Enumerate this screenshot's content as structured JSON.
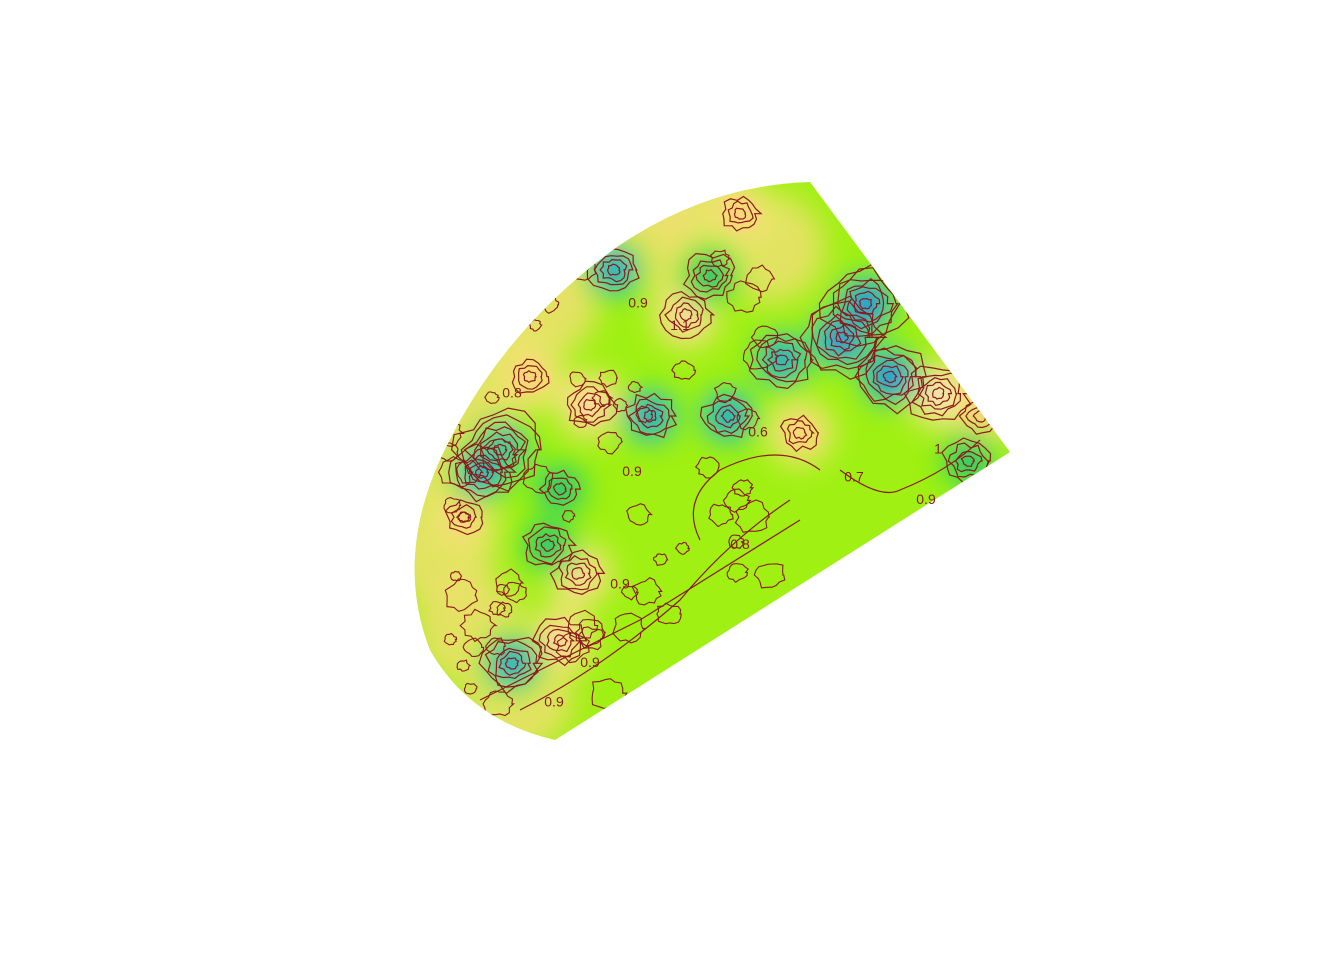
{
  "chart_data": {
    "type": "heatmap",
    "subtype": "filled-contour-with-contour-lines",
    "title": "",
    "xlabel": "",
    "ylabel": "",
    "axes_visible": false,
    "grid": false,
    "legend": "none",
    "colormap": {
      "name": "rainbow",
      "stops": [
        {
          "value": 0.3,
          "color": "#0000ff"
        },
        {
          "value": 0.5,
          "color": "#1e90ff"
        },
        {
          "value": 0.7,
          "color": "#00e000"
        },
        {
          "value": 0.8,
          "color": "#90f000"
        },
        {
          "value": 0.9,
          "color": "#e0f060"
        },
        {
          "value": 1.0,
          "color": "#ffd080"
        },
        {
          "value": 1.2,
          "color": "#ffe8d0"
        }
      ]
    },
    "contour_line_color": "#8b1a1a",
    "contour_levels": [
      0.3,
      0.4,
      0.5,
      0.6,
      0.7,
      0.8,
      0.9,
      1.0,
      1.1,
      1.2
    ],
    "labeled_contours": [
      {
        "label": "0.9",
        "u": 0.35,
        "v": 0.72
      },
      {
        "label": "0.9",
        "u": 0.3,
        "v": 0.86
      },
      {
        "label": "0.9",
        "u": 0.24,
        "v": 0.93
      },
      {
        "label": "0.8",
        "u": 0.55,
        "v": 0.65
      },
      {
        "label": "0.7",
        "u": 0.74,
        "v": 0.53
      },
      {
        "label": "0.9",
        "u": 0.86,
        "v": 0.57
      },
      {
        "label": "1",
        "u": 0.88,
        "v": 0.48
      },
      {
        "label": "0.6",
        "u": 0.58,
        "v": 0.45
      },
      {
        "label": "0.9",
        "u": 0.37,
        "v": 0.52
      },
      {
        "label": "0.9",
        "u": 0.38,
        "v": 0.22
      },
      {
        "label": "1.1",
        "u": 0.45,
        "v": 0.26
      },
      {
        "label": "0.8",
        "u": 0.17,
        "v": 0.38
      }
    ],
    "low_spots": [
      {
        "u": 0.72,
        "v": 0.28,
        "value": 0.3
      },
      {
        "u": 0.76,
        "v": 0.22,
        "value": 0.35
      },
      {
        "u": 0.8,
        "v": 0.35,
        "value": 0.4
      },
      {
        "u": 0.15,
        "v": 0.48,
        "value": 0.35
      },
      {
        "u": 0.12,
        "v": 0.52,
        "value": 0.45
      },
      {
        "u": 0.62,
        "v": 0.32,
        "value": 0.45
      },
      {
        "u": 0.53,
        "v": 0.42,
        "value": 0.5
      },
      {
        "u": 0.4,
        "v": 0.42,
        "value": 0.5
      },
      {
        "u": 0.5,
        "v": 0.17,
        "value": 0.55
      },
      {
        "u": 0.17,
        "v": 0.86,
        "value": 0.45
      },
      {
        "u": 0.23,
        "v": 0.65,
        "value": 0.55
      },
      {
        "u": 0.93,
        "v": 0.5,
        "value": 0.55
      },
      {
        "u": 0.34,
        "v": 0.16,
        "value": 0.5
      },
      {
        "u": 0.25,
        "v": 0.55,
        "value": 0.6
      }
    ],
    "high_spots": [
      {
        "u": 0.88,
        "v": 0.38,
        "value": 1.2
      },
      {
        "u": 0.28,
        "v": 0.7,
        "value": 1.1
      },
      {
        "u": 0.25,
        "v": 0.82,
        "value": 1.1
      },
      {
        "u": 0.3,
        "v": 0.4,
        "value": 1.1
      },
      {
        "u": 0.46,
        "v": 0.24,
        "value": 1.1
      },
      {
        "u": 0.55,
        "v": 0.06,
        "value": 1.05
      },
      {
        "u": 0.09,
        "v": 0.6,
        "value": 1.05
      },
      {
        "u": 0.2,
        "v": 0.35,
        "value": 1.05
      },
      {
        "u": 0.65,
        "v": 0.45,
        "value": 1.0
      },
      {
        "u": 0.95,
        "v": 0.42,
        "value": 1.05
      }
    ],
    "background_value": 0.82
  }
}
